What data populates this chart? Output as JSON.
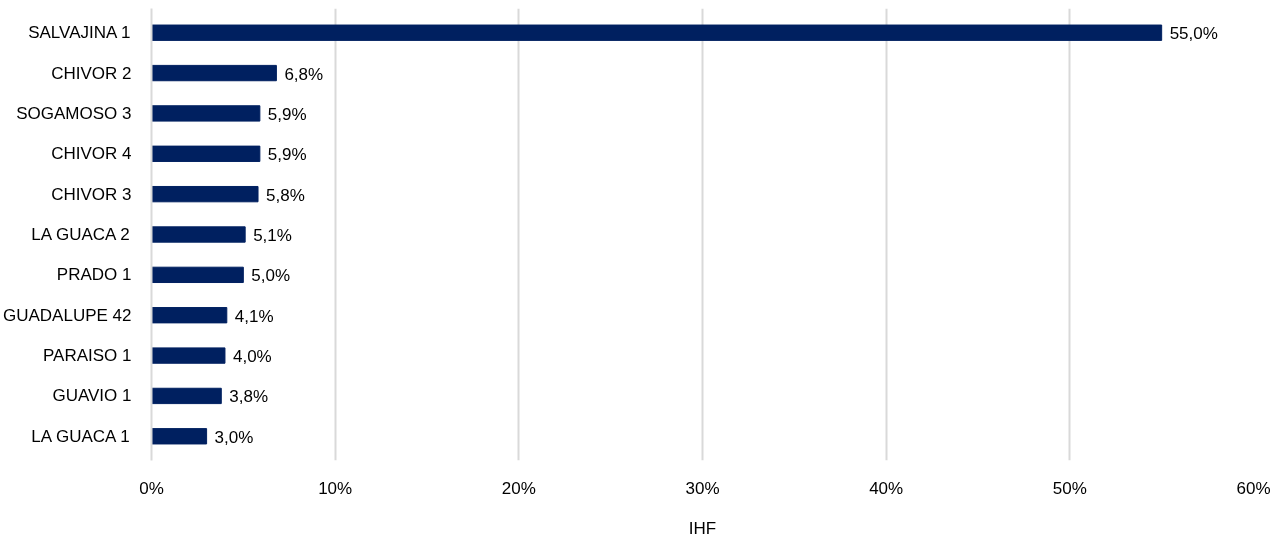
{
  "chart_data": {
    "type": "bar",
    "orientation": "horizontal",
    "xlabel": "IHF",
    "categories": [
      "SALVAJINA 1",
      "CHIVOR 2",
      "SOGAMOSO 3",
      "CHIVOR 4",
      "CHIVOR 3",
      "LA GUACA 2",
      "PRADO 1",
      "GUADALUPE 42",
      "PARAISO 1",
      "GUAVIO 1",
      "LA GUACA 1"
    ],
    "values": [
      55.0,
      6.8,
      5.9,
      5.9,
      5.8,
      5.1,
      5.0,
      4.1,
      4.0,
      3.8,
      3.0
    ],
    "value_labels": [
      "55,0%",
      "6,8%",
      "5,9%",
      "5,9%",
      "5,8%",
      "5,1%",
      "5,0%",
      "4,1%",
      "4,0%",
      "3,8%",
      "3,0%"
    ],
    "color": "#002060",
    "xlim": [
      0,
      60
    ],
    "xticks": [
      {
        "value": 0,
        "label": "0%"
      },
      {
        "value": 10,
        "label": "10%"
      },
      {
        "value": 20,
        "label": "20%"
      },
      {
        "value": 30,
        "label": "30%"
      },
      {
        "value": 40,
        "label": "40%"
      },
      {
        "value": 50,
        "label": "50%"
      },
      {
        "value": 60,
        "label": "60%"
      }
    ],
    "grid": "x"
  }
}
